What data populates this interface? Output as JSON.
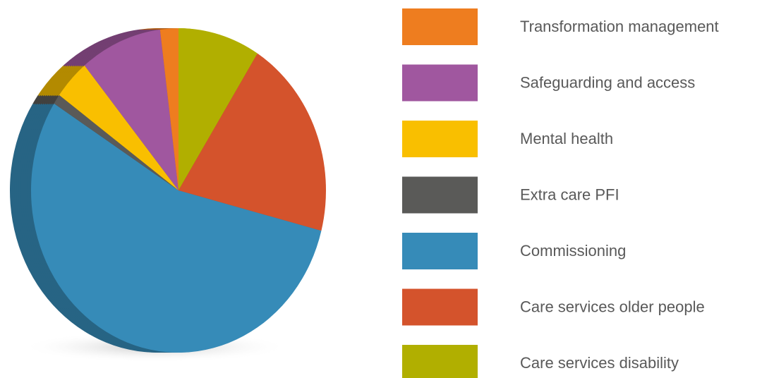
{
  "chart_data": {
    "type": "pie",
    "categories": [
      "Transformation management",
      "Safeguarding and access",
      "Mental health",
      "Extra care PFI",
      "Commissioning",
      "Care services older people",
      "Care services disability"
    ],
    "values": [
      2,
      9,
      4,
      1,
      55,
      20,
      9
    ],
    "colors": [
      "#ee7d1f",
      "#a0579f",
      "#f9bf00",
      "#5a5a58",
      "#368bb8",
      "#d4532c",
      "#b1af00"
    ],
    "legend": "right"
  }
}
